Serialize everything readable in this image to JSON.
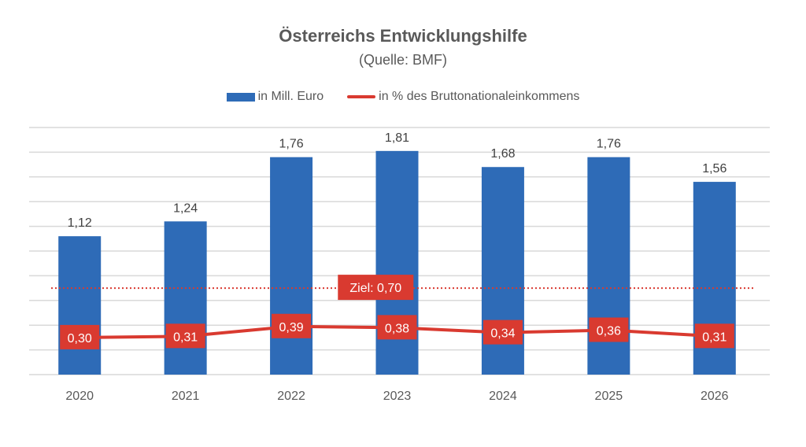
{
  "chart_data": {
    "type": "bar",
    "title": "Österreichs Entwicklungshilfe",
    "subtitle": "(Quelle: BMF)",
    "categories": [
      "2020",
      "2021",
      "2022",
      "2023",
      "2024",
      "2025",
      "2026"
    ],
    "series": [
      {
        "name": "in Mill. Euro",
        "type": "bar",
        "color": "#2e6bb7",
        "values": [
          1.12,
          1.24,
          1.76,
          1.81,
          1.68,
          1.76,
          1.56
        ],
        "labels": [
          "1,12",
          "1,24",
          "1,76",
          "1,81",
          "1,68",
          "1,76",
          "1,56"
        ]
      },
      {
        "name": "in % des Bruttonationaleinkommens",
        "type": "line",
        "color": "#d93a30",
        "values": [
          0.3,
          0.31,
          0.39,
          0.38,
          0.34,
          0.36,
          0.31
        ],
        "labels": [
          "0,30",
          "0,31",
          "0,39",
          "0,38",
          "0,34",
          "0,36",
          "0,31"
        ]
      }
    ],
    "reference_line": {
      "label": "Ziel: 0,70",
      "value": 0.7,
      "color": "#d93a30",
      "style": "dotted"
    },
    "ylim": [
      0,
      2.0
    ],
    "grid_step": 0.2,
    "grid": true,
    "xlabel": "",
    "ylabel": "",
    "legend_position": "top"
  }
}
